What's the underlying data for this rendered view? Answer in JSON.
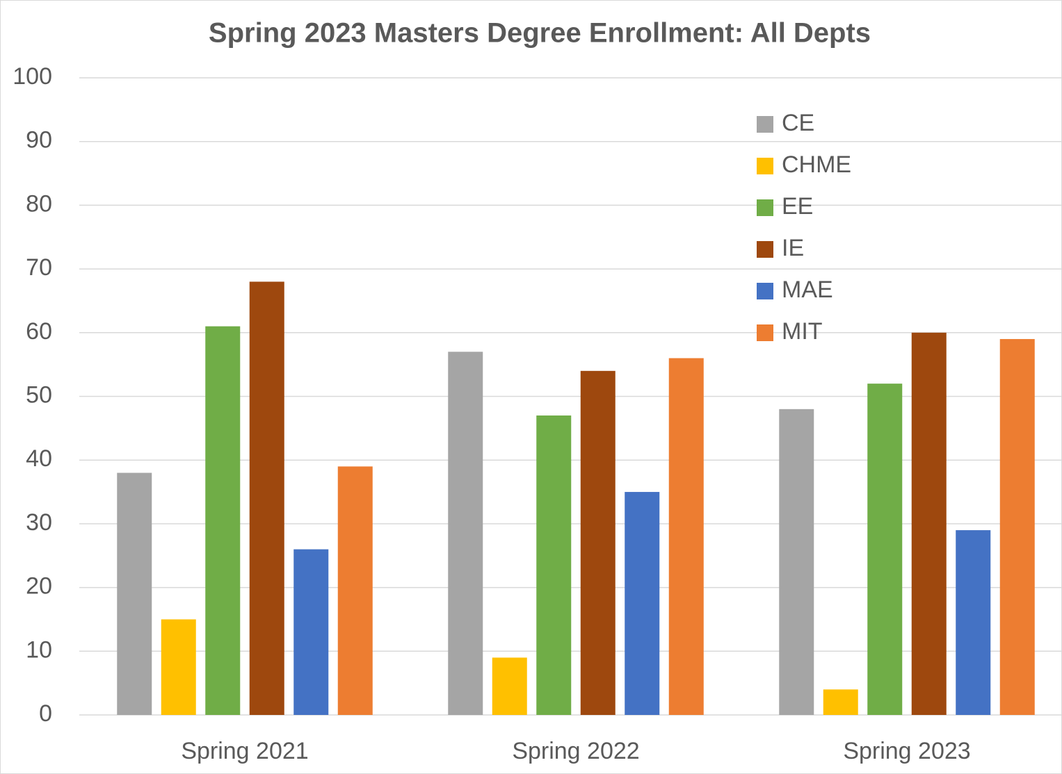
{
  "chart_data": {
    "type": "bar",
    "title": "Spring 2023 Masters Degree Enrollment: All Depts",
    "categories": [
      "Spring 2021",
      "Spring 2022",
      "Spring 2023"
    ],
    "series": [
      {
        "name": "CE",
        "color": "#a5a5a5",
        "values": [
          38,
          57,
          48
        ]
      },
      {
        "name": "CHME",
        "color": "#ffc000",
        "values": [
          15,
          9,
          4
        ]
      },
      {
        "name": "EE",
        "color": "#70ad47",
        "values": [
          61,
          47,
          52
        ]
      },
      {
        "name": "IE",
        "color": "#9e480e",
        "values": [
          68,
          54,
          60
        ]
      },
      {
        "name": "MAE",
        "color": "#4472c4",
        "values": [
          26,
          35,
          29
        ]
      },
      {
        "name": "MIT",
        "color": "#ed7d31",
        "values": [
          39,
          56,
          59
        ]
      }
    ],
    "ylim": [
      0,
      100
    ],
    "yticks": [
      0,
      10,
      20,
      30,
      40,
      50,
      60,
      70,
      80,
      90,
      100
    ],
    "grid": true,
    "legend": "top-right"
  }
}
